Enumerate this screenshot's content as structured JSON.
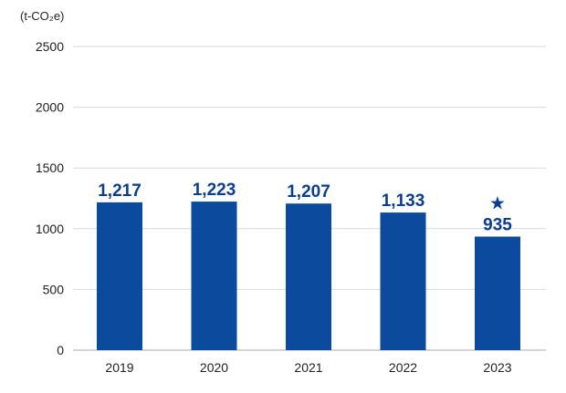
{
  "chart_data": {
    "type": "bar",
    "unit_label": "(t-CO₂e)",
    "categories": [
      "2019",
      "2020",
      "2021",
      "2022",
      "2023"
    ],
    "values": [
      1217,
      1223,
      1207,
      1133,
      935
    ],
    "value_labels": [
      "1,217",
      "1,223",
      "1,207",
      "1,133",
      "935"
    ],
    "highlight": {
      "category": "2023",
      "marker": "★"
    },
    "yticks": [
      "0",
      "500",
      "1000",
      "1500",
      "2000",
      "2500"
    ],
    "ytick_values": [
      0,
      500,
      1000,
      1500,
      2000,
      2500
    ],
    "ylim": [
      0,
      2500
    ],
    "grid": true,
    "colors": {
      "bar": "#0b4a9c",
      "label": "#0b3d91",
      "grid": "#d9d9d9",
      "axis": "#aaaaaa"
    }
  }
}
